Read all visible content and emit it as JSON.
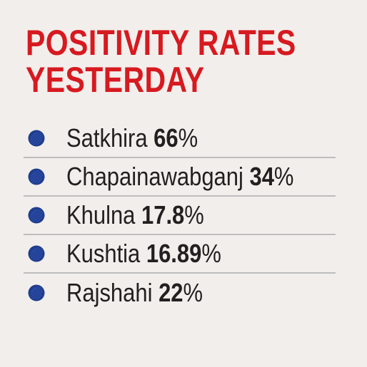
{
  "title": {
    "line1": "POSITIVITY RATES",
    "line2": "YESTERDAY"
  },
  "items": [
    {
      "name": "Satkhira",
      "value": "66",
      "unit": "%"
    },
    {
      "name": "Chapainawabganj",
      "value": "34",
      "unit": "%"
    },
    {
      "name": "Khulna",
      "value": "17.8",
      "unit": "%"
    },
    {
      "name": "Kushtia",
      "value": "16.89",
      "unit": "%"
    },
    {
      "name": "Rajshahi",
      "value": "22",
      "unit": "%"
    }
  ],
  "colors": {
    "title": "#d71920",
    "text": "#231f20",
    "bullet": "#1f3d8e",
    "divider": "#bdbdbd",
    "background": "#f2eeeb"
  },
  "icons": {
    "bullet": "scribbled-circle-icon"
  }
}
